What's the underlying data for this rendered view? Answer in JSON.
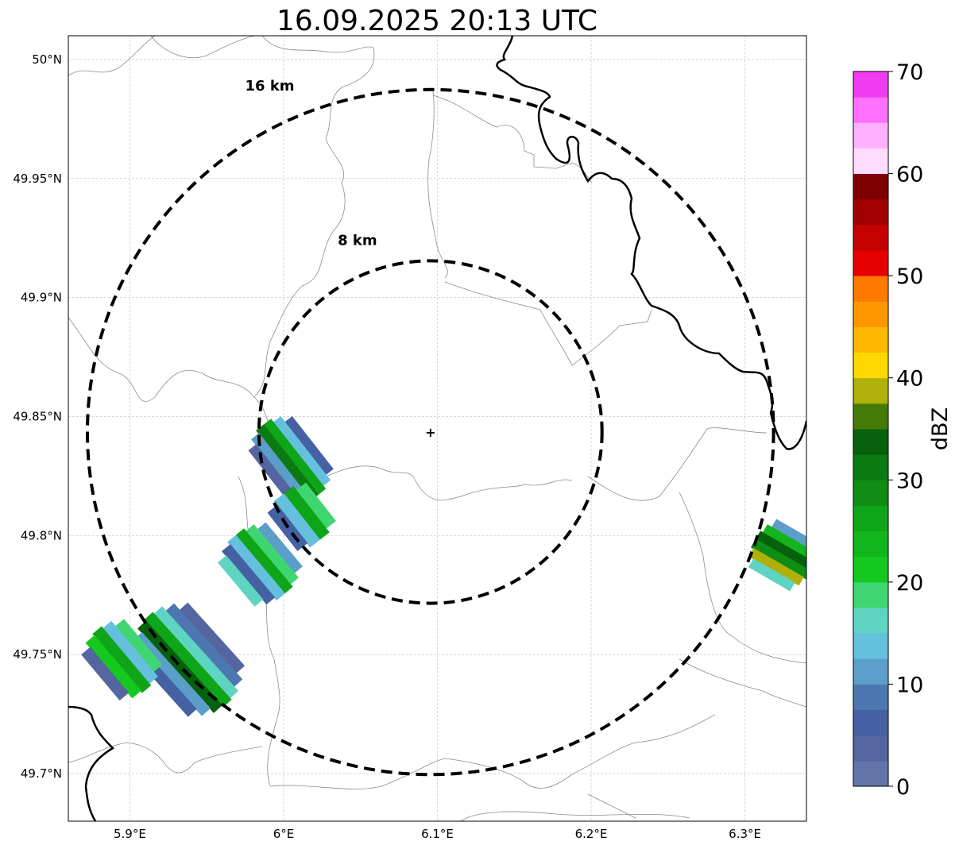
{
  "title": "16.09.2025 20:13 UTC",
  "map": {
    "lon_range": [
      5.86,
      6.34
    ],
    "lat_range": [
      49.68,
      50.01
    ],
    "grid": true,
    "lon_ticks": [
      {
        "value": 5.9,
        "label": "5.9°E"
      },
      {
        "value": 6.0,
        "label": "6°E"
      },
      {
        "value": 6.1,
        "label": "6.1°E"
      },
      {
        "value": 6.2,
        "label": "6.2°E"
      },
      {
        "value": 6.3,
        "label": "6.3°E"
      }
    ],
    "lat_ticks": [
      {
        "value": 50.0,
        "label": "50°N"
      },
      {
        "value": 49.95,
        "label": "49.95°N"
      },
      {
        "value": 49.9,
        "label": "49.9°N"
      },
      {
        "value": 49.85,
        "label": "49.85°N"
      },
      {
        "value": 49.8,
        "label": "49.8°N"
      },
      {
        "value": 49.75,
        "label": "49.75°N"
      },
      {
        "value": 49.7,
        "label": "49.7°N"
      }
    ],
    "radar_site": {
      "lon": 6.0955,
      "lat": 49.8435
    },
    "range_rings": [
      {
        "radius_km": 8,
        "label": "8 km",
        "label_lon": 6.048,
        "label_lat": 49.922
      },
      {
        "radius_km": 16,
        "label": "16 km",
        "label_lon": 5.991,
        "label_lat": 49.987
      }
    ],
    "border_color": "#000000",
    "admin_color": "#8c8c8c",
    "grid_color": "#c0c0c0"
  },
  "colorbar": {
    "label": "dBZ",
    "min": 0,
    "max": 70,
    "step": 2.5,
    "tick_values": [
      0,
      10,
      20,
      30,
      40,
      50,
      60,
      70
    ],
    "tick_labels": [
      "0",
      "10",
      "20",
      "30",
      "40",
      "50",
      "60",
      "70"
    ],
    "colors": [
      "#6375a8",
      "#5465a0",
      "#4560a3",
      "#4d77b0",
      "#5a9ec9",
      "#65c0dd",
      "#5fd4c2",
      "#3fd672",
      "#14c81e",
      "#12b51b",
      "#0ea518",
      "#0f8d15",
      "#0c7a12",
      "#06600c",
      "#467a08",
      "#b0b00a",
      "#ffd800",
      "#ffb700",
      "#ff9800",
      "#ff7a00",
      "#e60000",
      "#c40000",
      "#a00000",
      "#7f0000",
      "#ffdcff",
      "#ffb0ff",
      "#ff70ff",
      "#f03cf0"
    ]
  },
  "echo_clusters": [
    {
      "lon": 6.005,
      "lat": 49.832,
      "len_km": 4.2,
      "wid_km": 1.6,
      "angle": 52,
      "dbz": [
        6,
        14,
        26,
        30,
        12,
        4
      ]
    },
    {
      "lon": 6.012,
      "lat": 49.808,
      "len_km": 2.8,
      "wid_km": 1.4,
      "angle": 52,
      "dbz": [
        18,
        26,
        14,
        6
      ]
    },
    {
      "lon": 5.985,
      "lat": 49.788,
      "len_km": 3.6,
      "wid_km": 1.8,
      "angle": 50,
      "dbz": [
        10,
        19,
        26,
        14,
        5,
        16
      ]
    },
    {
      "lon": 5.938,
      "lat": 49.748,
      "len_km": 5.5,
      "wid_km": 2.2,
      "angle": 48,
      "dbz": [
        4,
        8,
        15,
        27,
        33,
        12,
        5
      ]
    },
    {
      "lon": 5.895,
      "lat": 49.748,
      "len_km": 3.6,
      "wid_km": 1.6,
      "angle": 50,
      "dbz": [
        19,
        14,
        26,
        22,
        4
      ]
    },
    {
      "lon": 6.325,
      "lat": 49.792,
      "len_km": 3.0,
      "wid_km": 1.6,
      "angle": 30,
      "dbz": [
        12,
        24,
        33,
        29,
        38,
        16
      ]
    }
  ]
}
